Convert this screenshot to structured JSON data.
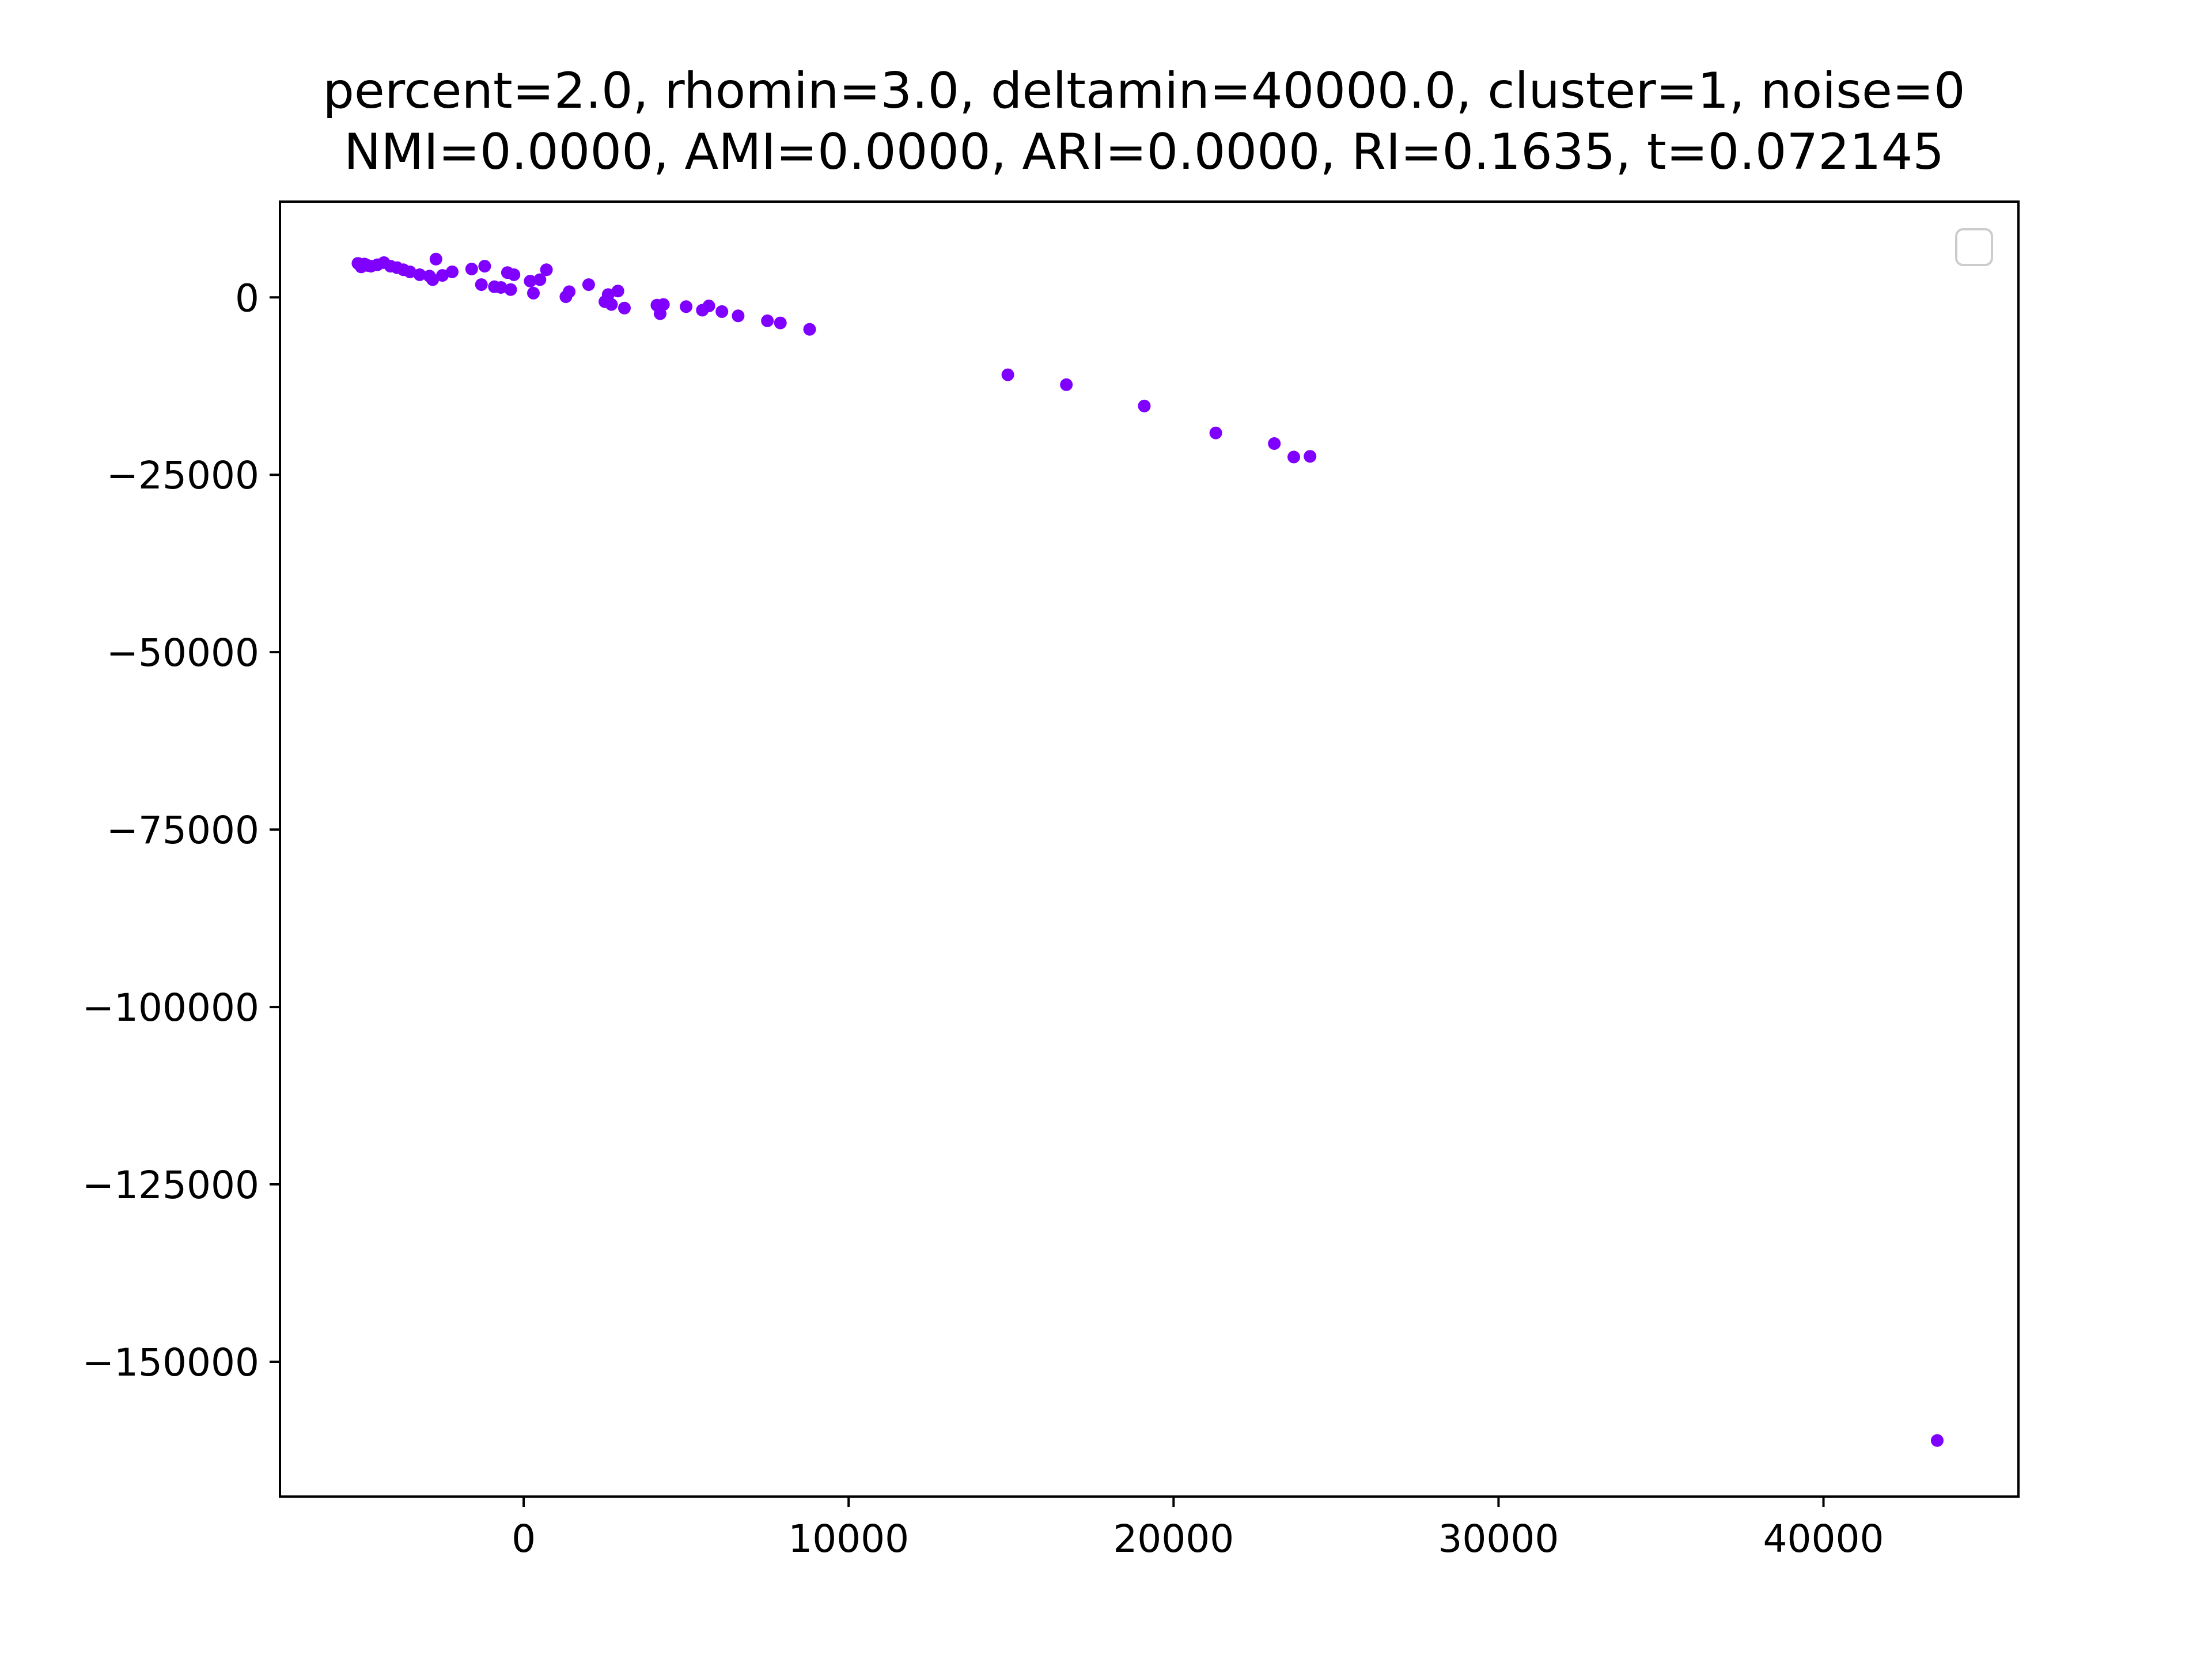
{
  "chart_data": {
    "type": "scatter",
    "title": "percent=2.0, rhomin=3.0, deltamin=40000.0, cluster=1, noise=0",
    "subtitle": "NMI=0.0000, AMI=0.0000, ARI=0.0000, RI=0.1635, t=0.072145",
    "xlabel": "",
    "ylabel": "",
    "xlim": [
      -7500,
      46000
    ],
    "ylim": [
      -169000,
      13500
    ],
    "xticks": [
      0,
      10000,
      20000,
      30000,
      40000
    ],
    "xtick_labels": [
      "0",
      "10000",
      "20000",
      "30000",
      "40000"
    ],
    "yticks": [
      0,
      -25000,
      -50000,
      -75000,
      -100000,
      -125000,
      -150000
    ],
    "ytick_labels": [
      "0",
      "−25000",
      "−50000",
      "−75000",
      "−100000",
      "−125000",
      "−150000"
    ],
    "grid": false,
    "legend": {
      "placement": "top-right",
      "entries": []
    },
    "point_color": "#7f00ff",
    "series": [
      {
        "x": [
          -5100,
          -5000,
          -4900,
          -4800,
          -4700,
          -4500,
          -4300,
          -4100,
          -3900,
          -3700,
          -3500,
          -3200,
          -2900,
          -2800,
          -2700,
          -2500,
          -2200,
          -1600,
          -1300,
          -1200,
          -900,
          -700,
          -500,
          -400,
          -300,
          200,
          300,
          500,
          700,
          1300,
          1400,
          2000,
          2500,
          2600,
          2700,
          2900,
          3100,
          4100,
          4200,
          4300,
          5000,
          5500,
          5700,
          6100,
          6600,
          7500,
          7900,
          8800,
          14900,
          16700,
          19100,
          21300,
          23100,
          23700,
          24200,
          43500
        ],
        "y": [
          4800,
          4300,
          4700,
          4500,
          4400,
          4600,
          4900,
          4400,
          4200,
          3900,
          3600,
          3200,
          3000,
          2500,
          5400,
          3100,
          3600,
          4000,
          1800,
          4400,
          1500,
          1400,
          3500,
          1100,
          3200,
          2300,
          600,
          2500,
          3900,
          100,
          800,
          1800,
          -600,
          400,
          -1000,
          900,
          -1500,
          -1100,
          -2300,
          -1000,
          -1300,
          -1800,
          -1200,
          -2000,
          -2600,
          -3300,
          -3600,
          -4500,
          -10900,
          -12300,
          -15300,
          -19100,
          -20600,
          -22500,
          -22400,
          -161100
        ]
      }
    ]
  }
}
